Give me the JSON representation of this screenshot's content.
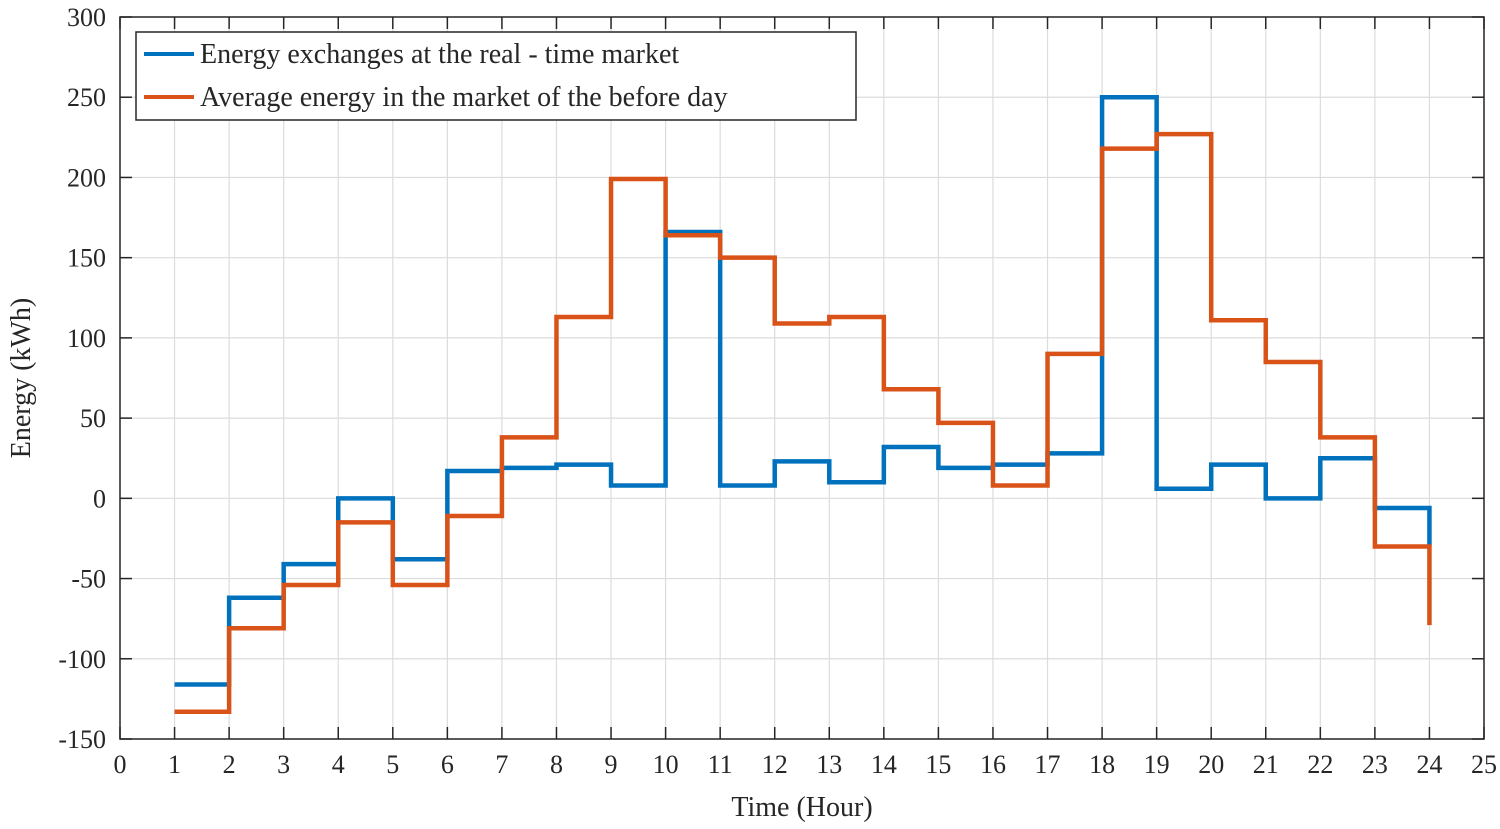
{
  "chart_data": {
    "type": "line",
    "step": "post",
    "title": "",
    "xlabel": "Time (Hour)",
    "ylabel": "Energy (kWh)",
    "xlim": [
      0,
      25
    ],
    "ylim": [
      -150,
      300
    ],
    "xticks": [
      0,
      1,
      2,
      3,
      4,
      5,
      6,
      7,
      8,
      9,
      10,
      11,
      12,
      13,
      14,
      15,
      16,
      17,
      18,
      19,
      20,
      21,
      22,
      23,
      24,
      25
    ],
    "yticks": [
      -150,
      -100,
      -50,
      0,
      50,
      100,
      150,
      200,
      250,
      300
    ],
    "grid": true,
    "legend_position": "top-left",
    "x": [
      1,
      2,
      3,
      4,
      5,
      6,
      7,
      8,
      9,
      10,
      11,
      12,
      13,
      14,
      15,
      16,
      17,
      18,
      19,
      20,
      21,
      22,
      23,
      24
    ],
    "series": [
      {
        "name": "Energy exchanges at the real - time market",
        "color": "#0072BD",
        "values": [
          -116,
          -62,
          -41,
          0,
          -38,
          17,
          19,
          21,
          8,
          166,
          8,
          23,
          10,
          32,
          19,
          21,
          28,
          250,
          6,
          21,
          0,
          25,
          -6,
          -30
        ]
      },
      {
        "name": "Average energy in the market of the before day",
        "color": "#D95319",
        "values": [
          -133,
          -81,
          -54,
          -15,
          -54,
          -11,
          38,
          113,
          199,
          164,
          150,
          109,
          113,
          68,
          47,
          8,
          90,
          218,
          227,
          111,
          85,
          38,
          -30,
          -79
        ]
      }
    ]
  }
}
